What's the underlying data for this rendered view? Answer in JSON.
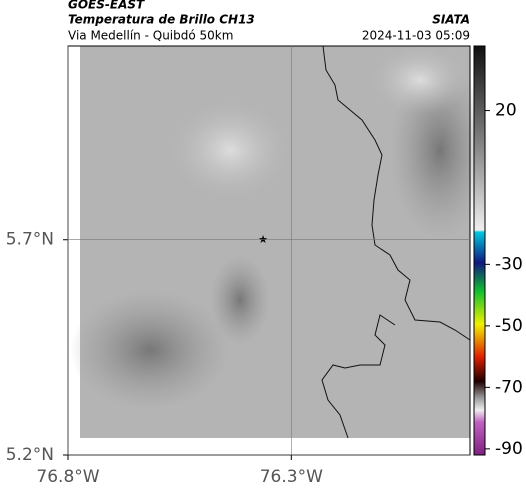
{
  "header": {
    "source": "GOES-EAST",
    "product": "Temperatura de Brillo CH13",
    "agency": "SIATA",
    "region": "Via Medellín - Quibdó 50km",
    "timestamp": "2024-11-03 05:09"
  },
  "map": {
    "lat_ticks": [
      {
        "value": 5.7,
        "label": "5.7°N"
      },
      {
        "value": 5.2,
        "label": "5.2°N"
      }
    ],
    "lon_ticks": [
      {
        "value": -76.8,
        "label": "76.8°W"
      },
      {
        "value": -76.3,
        "label": "76.3°W"
      }
    ],
    "latlim": [
      5.2,
      6.15
    ],
    "lonlim": [
      -76.8,
      -75.9
    ]
  },
  "colorbar": {
    "lim": [
      -92,
      41
    ],
    "ticks": [
      20,
      -30,
      -50,
      -70,
      -90
    ]
  }
}
